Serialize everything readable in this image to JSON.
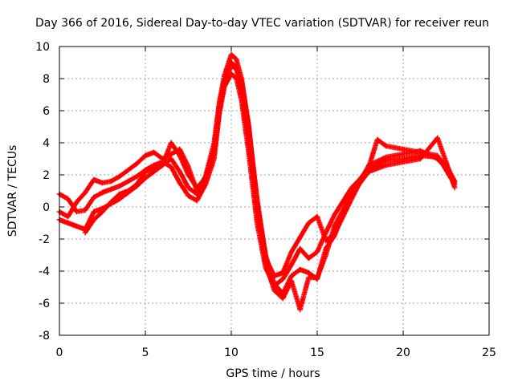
{
  "chart_data": {
    "type": "scatter",
    "title": "Day 366 of 2016, Sidereal Day-to-day VTEC variation (SDTVAR) for receiver reun",
    "xlabel": "GPS time / hours",
    "ylabel": "SDTVAR / TECUs",
    "xlim": [
      0,
      25
    ],
    "ylim": [
      -8,
      10
    ],
    "xticks": [
      0,
      5,
      10,
      15,
      20,
      25
    ],
    "yticks": [
      -8,
      -6,
      -4,
      -2,
      0,
      2,
      4,
      6,
      8,
      10
    ],
    "grid": true,
    "legend": "none",
    "marker": "+",
    "series": [
      {
        "name": "trace-1",
        "color": "#ff0000",
        "x": [
          0.0,
          0.5,
          1.0,
          1.5,
          2.0,
          2.5,
          3.0,
          3.5,
          4.0,
          4.5,
          5.0,
          5.5,
          6.0,
          6.5,
          7.0,
          7.5,
          8.0,
          8.5,
          9.0,
          9.3,
          9.6,
          10.0,
          10.3,
          10.6,
          11.0,
          11.5,
          12.0,
          12.5,
          13.0,
          13.5,
          14.0,
          14.5,
          15.0,
          15.5,
          16.0,
          17.0,
          18.0,
          19.0,
          20.0,
          21.0,
          22.0,
          22.5,
          23.0
        ],
        "y": [
          -0.3,
          -0.6,
          0.3,
          0.9,
          1.7,
          1.5,
          1.6,
          1.9,
          2.3,
          2.7,
          3.2,
          3.4,
          3.0,
          3.3,
          3.6,
          2.5,
          1.0,
          1.9,
          4.0,
          6.5,
          8.2,
          9.5,
          9.2,
          8.0,
          5.0,
          0.5,
          -3.2,
          -4.3,
          -4.1,
          -2.8,
          -1.9,
          -1.0,
          -0.6,
          -2.1,
          -1.7,
          0.5,
          2.6,
          3.1,
          3.3,
          3.5,
          3.0,
          2.4,
          1.5
        ]
      },
      {
        "name": "trace-2",
        "color": "#ff0000",
        "x": [
          0.0,
          0.5,
          1.0,
          1.5,
          2.0,
          2.5,
          3.0,
          3.5,
          4.0,
          4.5,
          5.0,
          5.5,
          6.0,
          6.5,
          7.0,
          7.5,
          8.0,
          8.5,
          9.0,
          9.3,
          9.6,
          10.0,
          10.3,
          10.6,
          11.0,
          11.5,
          12.0,
          12.5,
          13.0,
          13.5,
          14.0,
          14.5,
          15.0,
          15.5,
          16.0,
          17.0,
          18.0,
          19.0,
          20.0,
          21.0,
          22.0,
          22.5,
          23.0
        ],
        "y": [
          0.8,
          0.5,
          -0.3,
          -0.2,
          0.6,
          0.9,
          1.1,
          1.3,
          1.6,
          1.9,
          2.3,
          2.6,
          2.8,
          2.5,
          1.5,
          0.7,
          0.4,
          1.4,
          3.0,
          5.8,
          7.5,
          8.3,
          8.0,
          6.6,
          3.5,
          -1.0,
          -3.8,
          -4.9,
          -4.5,
          -3.6,
          -2.6,
          -3.2,
          -2.8,
          -1.6,
          -0.5,
          1.2,
          2.3,
          2.9,
          3.0,
          3.2,
          3.1,
          2.6,
          1.6
        ]
      },
      {
        "name": "trace-3",
        "color": "#ff0000",
        "x": [
          0.0,
          0.5,
          1.0,
          1.5,
          2.0,
          2.5,
          3.0,
          3.5,
          4.0,
          4.5,
          5.0,
          5.5,
          6.0,
          6.5,
          7.0,
          7.5,
          8.0,
          8.5,
          9.0,
          9.3,
          9.6,
          10.0,
          10.3,
          10.6,
          11.0,
          11.5,
          12.0,
          12.5,
          13.0,
          13.5,
          14.0,
          14.5,
          15.0,
          15.5,
          16.0,
          17.0,
          18.0,
          19.0,
          20.0,
          21.0,
          22.0,
          22.5,
          23.0
        ],
        "y": [
          -0.8,
          -1.0,
          -1.2,
          -1.4,
          -0.3,
          -0.1,
          0.2,
          0.5,
          0.9,
          1.3,
          1.8,
          2.2,
          2.6,
          3.0,
          2.2,
          1.2,
          0.8,
          1.6,
          3.4,
          6.0,
          7.8,
          8.8,
          8.6,
          7.2,
          4.2,
          -0.3,
          -3.5,
          -5.2,
          -5.7,
          -4.6,
          -6.4,
          -4.4,
          -4.4,
          -3.0,
          -1.2,
          0.8,
          2.2,
          2.6,
          2.8,
          3.0,
          4.3,
          2.8,
          1.2
        ]
      },
      {
        "name": "trace-4",
        "color": "#ff0000",
        "x": [
          1.5,
          2.0,
          2.5,
          3.0,
          3.5,
          4.0,
          4.5,
          5.0,
          5.5,
          6.0,
          6.5,
          7.0,
          7.5,
          8.0,
          8.5,
          9.0,
          9.3,
          9.6,
          10.0,
          10.3,
          10.6,
          11.0,
          11.5,
          12.0,
          12.5,
          13.0,
          13.5,
          14.0,
          14.5,
          15.0,
          15.5,
          16.0,
          17.0,
          18.0,
          18.5,
          19.0,
          20.0,
          21.0,
          22.0,
          22.5,
          23.0
        ],
        "y": [
          -1.6,
          -0.8,
          -0.3,
          0.3,
          0.8,
          1.0,
          1.4,
          2.2,
          2.4,
          2.6,
          4.0,
          3.2,
          2.0,
          1.2,
          1.8,
          3.6,
          6.2,
          7.9,
          9.0,
          8.7,
          7.8,
          5.2,
          0.2,
          -3.0,
          -4.8,
          -5.4,
          -4.3,
          -3.9,
          -4.1,
          -4.5,
          -2.6,
          -1.8,
          1.0,
          2.5,
          4.2,
          3.8,
          3.6,
          3.4,
          3.2,
          2.3,
          1.4
        ]
      }
    ]
  }
}
